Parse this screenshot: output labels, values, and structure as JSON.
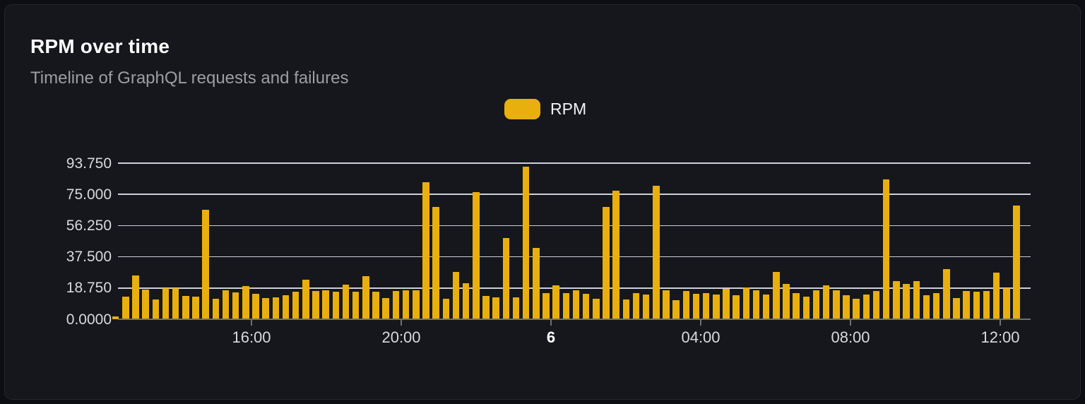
{
  "panel": {
    "title": "RPM over time",
    "subtitle": "Timeline of GraphQL requests and failures"
  },
  "legend": {
    "items": [
      {
        "label": "RPM",
        "swatch_color": "#e8af0d"
      }
    ]
  },
  "chart_data": {
    "type": "bar",
    "title": "RPM over time",
    "subtitle": "Timeline of GraphQL requests and failures",
    "xlabel": "",
    "ylabel": "",
    "ylim": [
      0,
      93.75
    ],
    "grid": true,
    "legend_position": "top-center",
    "yticks": [
      {
        "value": 0,
        "label": "0.0000"
      },
      {
        "value": 18.75,
        "label": "18.750"
      },
      {
        "value": 37.5,
        "label": "37.500"
      },
      {
        "value": 56.25,
        "label": "56.250"
      },
      {
        "value": 75,
        "label": "75.000"
      },
      {
        "value": 93.75,
        "label": "93.750"
      }
    ],
    "xticks": [
      {
        "label": "16:00",
        "emphasis": false
      },
      {
        "label": "20:00",
        "emphasis": false
      },
      {
        "label": "6",
        "emphasis": true
      },
      {
        "label": "04:00",
        "emphasis": false
      },
      {
        "label": "08:00",
        "emphasis": false
      },
      {
        "label": "12:00",
        "emphasis": false
      }
    ],
    "series": [
      {
        "name": "RPM",
        "color": "#e8af0d",
        "values": [
          1.5,
          13.6,
          26.3,
          17.8,
          11.9,
          18.7,
          18.7,
          14.0,
          13.4,
          65.8,
          12.4,
          17.5,
          16.3,
          19.9,
          15.3,
          12.7,
          13.1,
          14.6,
          16.7,
          23.7,
          16.9,
          17.3,
          16.6,
          20.9,
          16.4,
          25.8,
          16.6,
          12.9,
          16.9,
          17.4,
          17.2,
          82.1,
          67.5,
          12.4,
          28.5,
          21.7,
          76.4,
          14.1,
          13.3,
          48.7,
          13.2,
          91.6,
          43.0,
          15.5,
          20.3,
          15.8,
          17.5,
          15.1,
          12.5,
          67.5,
          77.4,
          12.0,
          15.8,
          14.9,
          80.1,
          17.6,
          11.6,
          16.8,
          15.4,
          15.8,
          14.9,
          18.3,
          14.3,
          19.3,
          17.5,
          14.9,
          28.5,
          21.4,
          15.8,
          13.7,
          17.5,
          20.5,
          17.2,
          14.3,
          12.2,
          14.7,
          16.8,
          83.8,
          22.8,
          21.0,
          22.8,
          14.5,
          15.8,
          30.2,
          12.9,
          16.8,
          16.5,
          16.8,
          28.1,
          18.6,
          68.2
        ]
      }
    ]
  },
  "colors": {
    "bar": "#e8af0d",
    "page_bg": "#0d0e11",
    "panel_bg": "#15171c",
    "panel_border": "#25272e",
    "gridline": "#dde0e9",
    "axis": "#6e7076",
    "tick_label": "#d8d9da",
    "title_text": "#ffffff",
    "subtitle_text": "#9c9ea3"
  }
}
